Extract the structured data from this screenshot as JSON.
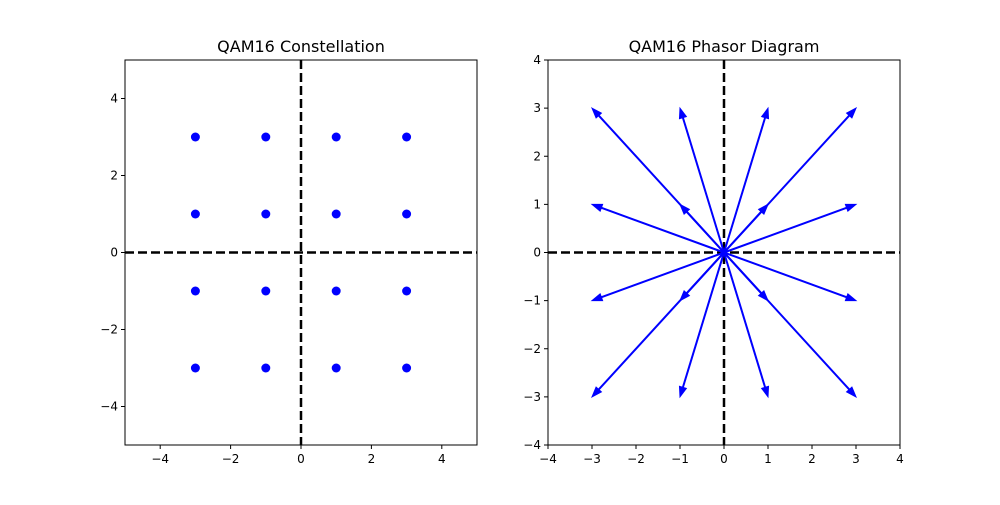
{
  "chart_data": [
    {
      "type": "scatter",
      "title": "QAM16 Constellation",
      "xlabel": "",
      "ylabel": "",
      "xlim": [
        -5,
        5
      ],
      "ylim": [
        -5,
        5
      ],
      "xticks": [
        -4,
        -2,
        0,
        2,
        4
      ],
      "yticks": [
        -4,
        -2,
        0,
        2,
        4
      ],
      "xtick_labels": [
        "−4",
        "−2",
        "0",
        "2",
        "4"
      ],
      "ytick_labels": [
        "−4",
        "−2",
        "0",
        "2",
        "4"
      ],
      "grid": false,
      "axis_lines": [
        0
      ],
      "color": "#0000ff",
      "points": [
        {
          "x": -3,
          "y": 3
        },
        {
          "x": -1,
          "y": 3
        },
        {
          "x": 1,
          "y": 3
        },
        {
          "x": 3,
          "y": 3
        },
        {
          "x": -3,
          "y": 1
        },
        {
          "x": -1,
          "y": 1
        },
        {
          "x": 1,
          "y": 1
        },
        {
          "x": 3,
          "y": 1
        },
        {
          "x": -3,
          "y": -1
        },
        {
          "x": -1,
          "y": -1
        },
        {
          "x": 1,
          "y": -1
        },
        {
          "x": 3,
          "y": -1
        },
        {
          "x": -3,
          "y": -3
        },
        {
          "x": -1,
          "y": -3
        },
        {
          "x": 1,
          "y": -3
        },
        {
          "x": 3,
          "y": -3
        }
      ]
    },
    {
      "type": "vector",
      "title": "QAM16 Phasor Diagram",
      "xlabel": "",
      "ylabel": "",
      "xlim": [
        -4,
        4
      ],
      "ylim": [
        -4,
        4
      ],
      "xticks": [
        -4,
        -3,
        -2,
        -1,
        0,
        1,
        2,
        3,
        4
      ],
      "yticks": [
        -4,
        -3,
        -2,
        -1,
        0,
        1,
        2,
        3,
        4
      ],
      "xtick_labels": [
        "−4",
        "−3",
        "−2",
        "−1",
        "0",
        "1",
        "2",
        "3",
        "4"
      ],
      "ytick_labels": [
        "−4",
        "−3",
        "−2",
        "−1",
        "0",
        "1",
        "2",
        "3",
        "4"
      ],
      "grid": false,
      "axis_lines": [
        0
      ],
      "color": "#0000ff",
      "origin": [
        0,
        0
      ],
      "vectors": [
        {
          "x": -3,
          "y": 3
        },
        {
          "x": -1,
          "y": 3
        },
        {
          "x": 1,
          "y": 3
        },
        {
          "x": 3,
          "y": 3
        },
        {
          "x": -3,
          "y": 1
        },
        {
          "x": -1,
          "y": 1
        },
        {
          "x": 1,
          "y": 1
        },
        {
          "x": 3,
          "y": 1
        },
        {
          "x": -3,
          "y": -1
        },
        {
          "x": -1,
          "y": -1
        },
        {
          "x": 1,
          "y": -1
        },
        {
          "x": 3,
          "y": -1
        },
        {
          "x": -3,
          "y": -3
        },
        {
          "x": -1,
          "y": -3
        },
        {
          "x": 1,
          "y": -3
        },
        {
          "x": 3,
          "y": -3
        }
      ]
    }
  ]
}
